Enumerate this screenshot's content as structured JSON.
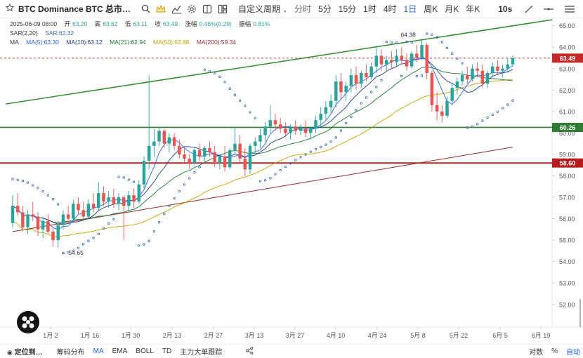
{
  "toolbar": {
    "symbol_title": "BTC Dominance BTC 总市…",
    "custom_period": "自定义周期",
    "intervals": [
      "分时",
      "5分",
      "15分",
      "1时",
      "4时",
      "1日",
      "周K",
      "月K",
      "年K"
    ],
    "active_interval": "1日",
    "replay": "10s"
  },
  "legend": {
    "date": "2025-06-09 08:00",
    "open_k": "开",
    "open": "63.20",
    "high_k": "高",
    "high": "63.62",
    "low_k": "低",
    "low": "63.11",
    "close_k": "收",
    "close": "63.49",
    "chg_k": "涨幅",
    "chg": "0.46%(0.29)",
    "amp_k": "振幅",
    "amp": "0.81%",
    "sar_label": "SAR(2,20)",
    "sar_value": "SAR:62.32",
    "ma_label": "MA",
    "ma5": "MA(5):63.30",
    "ma10": "MA(10):63.12",
    "ma21": "MA(21):62.94",
    "ma50": "MA(50):62.86",
    "ma200": "MA(200):59.34"
  },
  "colors": {
    "up": "#26a69a",
    "down": "#ef5350",
    "sar": "#3b6fb6",
    "ma5": "#2962ff",
    "ma10": "#1a3a8c",
    "ma21": "#1b7a35",
    "ma50": "#c7a100",
    "ma200": "#9c2b2b",
    "trend": "#2e8b2e",
    "support_green": "#2e7d32",
    "support_red": "#b71c1c"
  },
  "chart_data": {
    "type": "candlestick",
    "y_ticks": [
      "65.00",
      "64.00",
      "63.00",
      "62.00",
      "61.00",
      "60.00",
      "59.00",
      "58.00",
      "57.00",
      "56.00",
      "55.00",
      "54.00",
      "53.00",
      "52.00"
    ],
    "x_ticks": [
      "1月 2",
      "1月 16",
      "1月 30",
      "2月 13",
      "2月 27",
      "3月 13",
      "3月 27",
      "4月 10",
      "4月 24",
      "5月 8",
      "5月 22",
      "6月 5",
      "6月 19"
    ],
    "ylim": [
      51.6,
      65.35
    ],
    "price_labels": [
      {
        "label": "63.49",
        "value": 63.49,
        "color": "#c62828"
      },
      {
        "label": "60.26",
        "value": 60.26,
        "color": "#2e7d32"
      },
      {
        "label": "58.60",
        "value": 58.6,
        "color": "#b71c1c"
      }
    ],
    "annotations": [
      {
        "label": "64.38",
        "value": 64.38
      },
      {
        "label": "← 54.65",
        "value": 54.65
      }
    ],
    "candles": [
      [
        55.8,
        57.1,
        55.6,
        56.6
      ],
      [
        56.6,
        57.2,
        56.1,
        56.3
      ],
      [
        56.3,
        56.6,
        55.4,
        55.6
      ],
      [
        55.6,
        56.4,
        55.3,
        56.2
      ],
      [
        56.2,
        56.8,
        55.9,
        56.1
      ],
      [
        56.1,
        56.3,
        55.2,
        55.5
      ],
      [
        55.5,
        56.1,
        55.1,
        55.9
      ],
      [
        55.9,
        56.2,
        55.3,
        55.4
      ],
      [
        55.4,
        55.6,
        54.7,
        55.0
      ],
      [
        55.0,
        55.9,
        54.65,
        55.7
      ],
      [
        55.7,
        56.4,
        55.5,
        56.2
      ],
      [
        56.2,
        56.6,
        55.9,
        56.0
      ],
      [
        56.0,
        56.9,
        55.8,
        56.7
      ],
      [
        56.7,
        57.0,
        56.2,
        56.4
      ],
      [
        56.4,
        56.8,
        55.9,
        56.1
      ],
      [
        56.1,
        56.9,
        56.0,
        56.7
      ],
      [
        56.7,
        57.2,
        56.3,
        56.5
      ],
      [
        56.5,
        57.7,
        56.4,
        57.2
      ],
      [
        57.2,
        57.5,
        56.6,
        56.8
      ],
      [
        56.8,
        57.3,
        56.5,
        57.0
      ],
      [
        57.0,
        57.4,
        56.5,
        56.7
      ],
      [
        56.7,
        57.2,
        56.4,
        57.0
      ],
      [
        57.0,
        57.1,
        55.0,
        56.6
      ],
      [
        56.6,
        57.3,
        56.3,
        57.1
      ],
      [
        57.1,
        57.4,
        56.5,
        56.8
      ],
      [
        56.8,
        57.8,
        56.7,
        57.6
      ],
      [
        57.6,
        58.9,
        57.4,
        58.7
      ],
      [
        58.7,
        62.7,
        58.3,
        59.4
      ],
      [
        59.4,
        60.2,
        58.9,
        59.6
      ],
      [
        59.6,
        60.3,
        59.4,
        60.1
      ],
      [
        60.1,
        60.2,
        59.3,
        59.5
      ],
      [
        59.5,
        60.0,
        59.1,
        59.8
      ],
      [
        59.8,
        60.0,
        59.2,
        59.4
      ],
      [
        59.4,
        59.7,
        58.8,
        59.0
      ],
      [
        59.0,
        59.3,
        58.6,
        58.8
      ],
      [
        58.8,
        59.0,
        58.3,
        58.6
      ],
      [
        58.6,
        59.3,
        58.5,
        59.2
      ],
      [
        59.2,
        59.5,
        58.7,
        58.9
      ],
      [
        58.9,
        59.4,
        58.6,
        59.3
      ],
      [
        59.3,
        59.6,
        58.9,
        59.1
      ],
      [
        59.1,
        59.4,
        58.4,
        58.6
      ],
      [
        58.6,
        59.0,
        58.3,
        58.9
      ],
      [
        58.9,
        59.4,
        58.2,
        58.4
      ],
      [
        58.4,
        59.3,
        58.3,
        59.2
      ],
      [
        59.2,
        60.3,
        59.0,
        59.5
      ],
      [
        59.5,
        59.9,
        58.6,
        58.8
      ],
      [
        58.8,
        59.3,
        58.0,
        58.3
      ],
      [
        58.3,
        59.5,
        58.1,
        59.4
      ],
      [
        59.4,
        59.8,
        59.0,
        59.6
      ],
      [
        59.6,
        60.2,
        59.3,
        59.9
      ],
      [
        59.9,
        60.5,
        59.6,
        60.3
      ],
      [
        60.3,
        61.3,
        60.0,
        60.6
      ],
      [
        60.6,
        60.9,
        60.1,
        60.4
      ],
      [
        60.4,
        60.7,
        60.0,
        60.2
      ],
      [
        60.2,
        60.5,
        59.8,
        60.0
      ],
      [
        60.0,
        60.4,
        59.7,
        60.3
      ],
      [
        60.3,
        60.6,
        59.9,
        60.1
      ],
      [
        60.1,
        60.4,
        59.9,
        60.2
      ],
      [
        60.2,
        60.6,
        59.8,
        60.0
      ],
      [
        60.0,
        60.3,
        59.7,
        60.2
      ],
      [
        60.2,
        60.8,
        60.0,
        60.6
      ],
      [
        60.6,
        61.2,
        60.3,
        60.9
      ],
      [
        60.9,
        61.5,
        60.6,
        61.2
      ],
      [
        61.2,
        61.8,
        60.9,
        61.5
      ],
      [
        61.5,
        62.7,
        61.2,
        62.4
      ],
      [
        62.4,
        62.8,
        61.6,
        61.9
      ],
      [
        61.9,
        62.4,
        61.5,
        62.2
      ],
      [
        62.2,
        63.0,
        61.9,
        62.7
      ],
      [
        62.7,
        63.1,
        62.0,
        62.3
      ],
      [
        62.3,
        62.9,
        62.1,
        62.8
      ],
      [
        62.8,
        63.2,
        62.4,
        62.6
      ],
      [
        62.6,
        63.3,
        62.5,
        63.1
      ],
      [
        63.1,
        64.0,
        62.8,
        63.6
      ],
      [
        63.6,
        63.9,
        62.9,
        63.2
      ],
      [
        63.2,
        63.6,
        62.9,
        63.4
      ],
      [
        63.4,
        63.8,
        63.0,
        63.3
      ],
      [
        63.3,
        63.9,
        63.1,
        63.6
      ],
      [
        63.6,
        64.0,
        63.2,
        63.4
      ],
      [
        63.4,
        63.7,
        62.9,
        63.1
      ],
      [
        63.1,
        63.8,
        63.0,
        63.7
      ],
      [
        63.7,
        64.1,
        63.3,
        63.5
      ],
      [
        63.5,
        64.38,
        63.4,
        64.1
      ],
      [
        64.1,
        64.2,
        62.5,
        62.8
      ],
      [
        62.8,
        62.9,
        61.0,
        61.3
      ],
      [
        61.3,
        61.9,
        60.6,
        61.0
      ],
      [
        61.0,
        61.3,
        60.5,
        60.8
      ],
      [
        60.8,
        61.7,
        60.7,
        61.5
      ],
      [
        61.5,
        62.3,
        61.3,
        62.1
      ],
      [
        62.1,
        62.6,
        61.8,
        62.4
      ],
      [
        62.4,
        62.9,
        62.2,
        62.7
      ],
      [
        62.7,
        63.1,
        62.3,
        62.5
      ],
      [
        62.5,
        63.2,
        62.4,
        63.0
      ],
      [
        63.0,
        63.3,
        62.6,
        62.9
      ],
      [
        62.9,
        63.2,
        62.1,
        62.3
      ],
      [
        62.3,
        62.9,
        62.1,
        62.8
      ],
      [
        62.8,
        63.3,
        62.6,
        63.1
      ],
      [
        63.1,
        63.4,
        62.7,
        62.9
      ],
      [
        62.9,
        63.2,
        62.6,
        63.0
      ],
      [
        63.0,
        63.5,
        62.8,
        63.2
      ],
      [
        63.2,
        63.62,
        63.11,
        63.49
      ]
    ]
  },
  "bottombar": {
    "locate": "定位到…",
    "items": [
      "筹码分布",
      "MA",
      "EMA",
      "BOLL",
      "TD",
      "主力大单跟踪"
    ],
    "active_item": "MA",
    "right_items": [
      "对数",
      "%",
      "自动"
    ]
  }
}
